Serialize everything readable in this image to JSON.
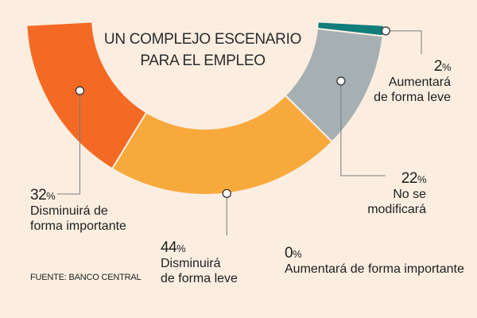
{
  "title": {
    "line1": "UN COMPLEJO ESCENARIO",
    "line2": "PARA EL EMPLEO"
  },
  "source": "FUENTE: BANCO CENTRAL",
  "chart_data": {
    "type": "pie",
    "style": "half-donut",
    "categories": [
      "Aumentará de forma leve",
      "No se modificará",
      "Disminuirá de forma leve",
      "Disminuirá de forma importante",
      "Aumentará de forma importante"
    ],
    "values": [
      2,
      22,
      44,
      32,
      0
    ],
    "unit": "%",
    "colors": [
      "#0f7d7a",
      "#a6b0b3",
      "#f8a93c",
      "#f46a25",
      "#f4b08a"
    ],
    "labels": [
      {
        "value": "2",
        "sign": "%",
        "line1": "Aumentará",
        "line2": "de forma leve"
      },
      {
        "value": "22",
        "sign": "%",
        "line1": "No se",
        "line2": "modificará"
      },
      {
        "value": "44",
        "sign": "%",
        "line1": "Disminuirá",
        "line2": "de forma leve"
      },
      {
        "value": "32",
        "sign": "%",
        "line1": "Disminuirá de",
        "line2": "forma importante"
      },
      {
        "value": "0",
        "sign": "%",
        "line1": "Aumentará de forma importante",
        "line2": ""
      }
    ]
  }
}
